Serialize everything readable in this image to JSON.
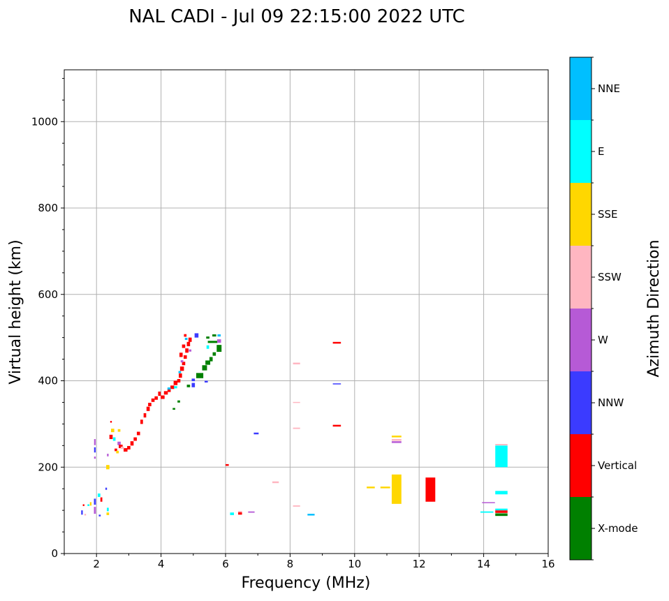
{
  "chart_data": {
    "type": "scatter",
    "title": "NAL CADI - Jul 09 22:15:00 2022 UTC",
    "xlabel": "Frequency (MHz)",
    "ylabel": "Virtual height (km)",
    "xlim": [
      1,
      16
    ],
    "ylim": [
      0,
      1120
    ],
    "xticks": [
      2,
      4,
      6,
      8,
      10,
      12,
      14,
      16
    ],
    "yticks": [
      0,
      200,
      400,
      600,
      800,
      1000
    ],
    "grid": true,
    "colorbar": {
      "label": "Azimuth Direction",
      "categories": [
        "X-mode",
        "Vertical",
        "NNW",
        "W",
        "SSW",
        "SSE",
        "E",
        "NNE"
      ],
      "colors": [
        "#008000",
        "#ff0000",
        "#3b3bff",
        "#b65ad6",
        "#ffb6c1",
        "#ffd700",
        "#00ffff",
        "#00bfff"
      ]
    },
    "point_fields": [
      "freq_mhz",
      "height_km",
      "category_index",
      "freq_span_mhz",
      "height_span_km"
    ],
    "points": [
      [
        2.9,
        240,
        1,
        0.12,
        8
      ],
      [
        3.0,
        245,
        1,
        0.1,
        8
      ],
      [
        3.1,
        255,
        1,
        0.1,
        10
      ],
      [
        3.2,
        265,
        1,
        0.1,
        8
      ],
      [
        3.3,
        278,
        1,
        0.1,
        8
      ],
      [
        3.4,
        305,
        1,
        0.08,
        10
      ],
      [
        3.5,
        320,
        1,
        0.08,
        10
      ],
      [
        3.6,
        335,
        1,
        0.1,
        10
      ],
      [
        3.65,
        345,
        1,
        0.1,
        8
      ],
      [
        3.75,
        355,
        1,
        0.1,
        8
      ],
      [
        3.85,
        360,
        1,
        0.1,
        8
      ],
      [
        3.95,
        370,
        1,
        0.08,
        10
      ],
      [
        4.05,
        362,
        1,
        0.12,
        8
      ],
      [
        4.15,
        372,
        1,
        0.12,
        8
      ],
      [
        4.25,
        378,
        1,
        0.1,
        8
      ],
      [
        4.35,
        385,
        1,
        0.12,
        8
      ],
      [
        4.45,
        395,
        1,
        0.12,
        10
      ],
      [
        4.55,
        400,
        1,
        0.1,
        8
      ],
      [
        4.6,
        412,
        1,
        0.1,
        10
      ],
      [
        4.65,
        428,
        1,
        0.12,
        10
      ],
      [
        4.7,
        440,
        1,
        0.1,
        8
      ],
      [
        4.62,
        460,
        1,
        0.1,
        10
      ],
      [
        4.75,
        455,
        1,
        0.1,
        8
      ],
      [
        4.8,
        470,
        1,
        0.1,
        10
      ],
      [
        4.85,
        485,
        1,
        0.1,
        10
      ],
      [
        4.9,
        495,
        1,
        0.1,
        10
      ],
      [
        4.75,
        505,
        1,
        0.08,
        6
      ],
      [
        4.7,
        480,
        1,
        0.1,
        8
      ],
      [
        4.45,
        385,
        6,
        0.1,
        5
      ],
      [
        4.25,
        382,
        7,
        0.1,
        5
      ],
      [
        4.78,
        497,
        7,
        0.08,
        5
      ],
      [
        4.65,
        445,
        3,
        0.08,
        5
      ],
      [
        4.9,
        470,
        3,
        0.08,
        5
      ],
      [
        4.58,
        420,
        7,
        0.08,
        5
      ],
      [
        5.0,
        390,
        2,
        0.1,
        10
      ],
      [
        5.0,
        402,
        2,
        0.1,
        6
      ],
      [
        5.1,
        505,
        2,
        0.12,
        10
      ],
      [
        4.85,
        388,
        0,
        0.1,
        6
      ],
      [
        5.4,
        398,
        2,
        0.1,
        4
      ],
      [
        5.45,
        478,
        6,
        0.08,
        8
      ],
      [
        5.2,
        412,
        0,
        0.22,
        12
      ],
      [
        5.35,
        430,
        0,
        0.15,
        12
      ],
      [
        5.45,
        442,
        0,
        0.15,
        10
      ],
      [
        5.55,
        450,
        0,
        0.1,
        10
      ],
      [
        5.65,
        462,
        0,
        0.1,
        8
      ],
      [
        5.8,
        475,
        0,
        0.15,
        16
      ],
      [
        5.6,
        490,
        0,
        0.3,
        5
      ],
      [
        5.45,
        500,
        0,
        0.1,
        5
      ],
      [
        5.65,
        505,
        0,
        0.12,
        5
      ],
      [
        5.8,
        505,
        7,
        0.1,
        5
      ],
      [
        5.8,
        492,
        3,
        0.12,
        8
      ],
      [
        4.4,
        335,
        0,
        0.08,
        4
      ],
      [
        4.55,
        352,
        0,
        0.08,
        5
      ],
      [
        1.95,
        222,
        3,
        0.05,
        5
      ],
      [
        1.95,
        240,
        2,
        0.05,
        12
      ],
      [
        1.95,
        258,
        3,
        0.05,
        14
      ],
      [
        2.35,
        228,
        3,
        0.05,
        6
      ],
      [
        2.35,
        200,
        5,
        0.1,
        10
      ],
      [
        2.6,
        240,
        1,
        0.08,
        6
      ],
      [
        2.45,
        270,
        1,
        0.1,
        10
      ],
      [
        2.5,
        285,
        5,
        0.1,
        8
      ],
      [
        2.55,
        265,
        6,
        0.08,
        8
      ],
      [
        2.7,
        255,
        3,
        0.1,
        8
      ],
      [
        2.75,
        248,
        1,
        0.12,
        8
      ],
      [
        2.65,
        235,
        5,
        0.08,
        6
      ],
      [
        2.45,
        305,
        1,
        0.05,
        4
      ],
      [
        2.7,
        285,
        5,
        0.08,
        6
      ],
      [
        2.8,
        245,
        4,
        0.1,
        5
      ],
      [
        1.95,
        100,
        3,
        0.06,
        16
      ],
      [
        1.95,
        120,
        2,
        0.06,
        14
      ],
      [
        2.08,
        135,
        6,
        0.08,
        8
      ],
      [
        2.15,
        125,
        1,
        0.06,
        10
      ],
      [
        2.3,
        150,
        2,
        0.05,
        5
      ],
      [
        2.35,
        102,
        6,
        0.06,
        8
      ],
      [
        2.35,
        92,
        5,
        0.08,
        6
      ],
      [
        1.6,
        112,
        1,
        0.05,
        4
      ],
      [
        1.75,
        112,
        6,
        0.06,
        4
      ],
      [
        1.82,
        115,
        5,
        0.05,
        8
      ],
      [
        1.55,
        95,
        2,
        0.05,
        10
      ],
      [
        1.65,
        90,
        4,
        0.05,
        4
      ],
      [
        2.1,
        88,
        2,
        0.06,
        4
      ],
      [
        6.05,
        205,
        1,
        0.1,
        4
      ],
      [
        6.2,
        92,
        6,
        0.12,
        6
      ],
      [
        6.45,
        93,
        1,
        0.12,
        6
      ],
      [
        6.45,
        97,
        4,
        0.12,
        3
      ],
      [
        6.8,
        96,
        3,
        0.2,
        3
      ],
      [
        6.95,
        278,
        2,
        0.15,
        4
      ],
      [
        7.55,
        165,
        4,
        0.2,
        4
      ],
      [
        8.2,
        440,
        4,
        0.22,
        4
      ],
      [
        8.2,
        350,
        4,
        0.22,
        2
      ],
      [
        8.2,
        290,
        4,
        0.22,
        3
      ],
      [
        8.2,
        110,
        4,
        0.22,
        3
      ],
      [
        8.65,
        90,
        7,
        0.22,
        4
      ],
      [
        9.45,
        488,
        1,
        0.25,
        4
      ],
      [
        9.45,
        393,
        2,
        0.25,
        2
      ],
      [
        9.45,
        296,
        1,
        0.25,
        4
      ],
      [
        10.5,
        153,
        5,
        0.25,
        4
      ],
      [
        10.95,
        153,
        5,
        0.3,
        4
      ],
      [
        11.3,
        149,
        5,
        0.3,
        68
      ],
      [
        11.3,
        258,
        3,
        0.3,
        4
      ],
      [
        11.3,
        263,
        4,
        0.3,
        4
      ],
      [
        11.3,
        271,
        5,
        0.3,
        4
      ],
      [
        12.35,
        148,
        1,
        0.3,
        56
      ],
      [
        14.15,
        118,
        3,
        0.4,
        2
      ],
      [
        14.1,
        96,
        6,
        0.4,
        3
      ],
      [
        14.55,
        225,
        6,
        0.38,
        50
      ],
      [
        14.55,
        141,
        6,
        0.38,
        8
      ],
      [
        14.55,
        252,
        4,
        0.38,
        3
      ],
      [
        14.55,
        90,
        0,
        0.38,
        6
      ],
      [
        14.55,
        97,
        1,
        0.38,
        6
      ],
      [
        14.55,
        102,
        6,
        0.38,
        4
      ]
    ]
  }
}
